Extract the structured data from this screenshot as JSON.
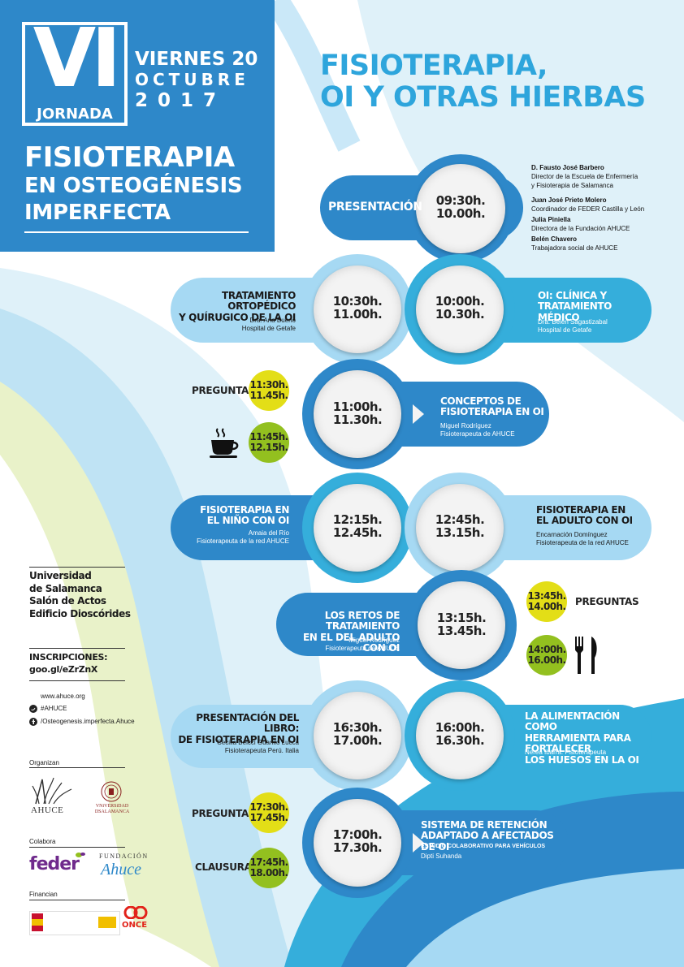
{
  "header": {
    "edition": "VI",
    "jornada": "JORNADA",
    "date_line1": "VIERNES 20",
    "date_line2": "OCTUBRE",
    "date_line3": "2 0 1 7",
    "title_line1": "FISIOTERAPIA",
    "title_line2": "EN OSTEOGÉNESIS",
    "title_line3": "IMPERFECTA"
  },
  "main_title": {
    "line1": "FISIOTERAPIA,",
    "line2": "OI Y OTRAS HIERBAS"
  },
  "colors": {
    "dark_blue": "#2e88c9",
    "mid_blue": "#35aedb",
    "light_blue": "#a6d9f3",
    "yellow": "#e3de17",
    "green": "#93c01f"
  },
  "sessions": {
    "presentacion": {
      "title": "PRESENTACIÓN",
      "start": "09:30h.",
      "end": "10.00h."
    },
    "clinica": {
      "title1": "OI: CLÍNICA Y",
      "title2": "TRATAMIENTO MÉDICO",
      "speaker": "Dra. Belén Sagastizabal",
      "affil": "Hospital de Getafe",
      "start": "10:00h.",
      "end": "10.30h."
    },
    "ortopedico": {
      "title1": "TRATAMIENTO ORTOPÉDICO",
      "title2": "Y QUÍRUGICO DE LA OI",
      "speaker": "Dra. Ana Bueno",
      "affil": "Hospital de Getafe",
      "start": "10:30h.",
      "end": "11.00h."
    },
    "conceptos": {
      "title1": "CONCEPTOS DE",
      "title2": "FISIOTERAPIA EN OI",
      "speaker": "Miguel Rodríguez",
      "affil": "Fisioterapeuta de AHUCE",
      "start": "11:00h.",
      "end": "11.30h."
    },
    "nino": {
      "title1": "FISIOTERAPIA EN",
      "title2": "EL NIÑO CON OI",
      "speaker": "Amaia del Río",
      "affil": "Fisioterapeuta de la red AHUCE",
      "start": "12:15h.",
      "end": "12.45h."
    },
    "adulto": {
      "title1": "FISIOTERAPIA EN",
      "title2": "EL ADULTO CON OI",
      "speaker": "Encarnación Domínguez",
      "affil": "Fisioterapeuta de la red AHUCE",
      "start": "12:45h.",
      "end": "13.15h."
    },
    "retos": {
      "title1": "LOS RETOS DE TRATAMIENTO",
      "title2": "EN EL DEL ADULTO CON OI",
      "speaker": "Miguel Rodríguez",
      "affil": "Fisioterapeuta de AHUCE",
      "start": "13:15h.",
      "end": "13.45h."
    },
    "alimentacion": {
      "title1": "LA ALIMENTACIÓN COMO",
      "title2": "HERRAMIENTA PARA FORTALECER",
      "title3": "LOS HUESOS EN LA  OI",
      "speaker": "Nerea Ibarra. Fisioterapeuta",
      "start": "16:00h.",
      "end": "16.30h."
    },
    "libro": {
      "title1": "PRESENTACIÓN DEL LIBRO:",
      "title2": "DE FISIOTERAPIA EN OI",
      "speaker": "Cecilia Belcci Guanilo Lucca",
      "affil": "Fisioterapeuta Perú. Italia",
      "start": "16:30h.",
      "end": "17.00h."
    },
    "sistema": {
      "title1": "SISTEMA DE RETENCIÓN",
      "title2": "ADAPTADO A AFECTADOS DE OI",
      "subtitle": "ESTUDIO COLABORATIVO PARA VEHÍCULOS",
      "speaker": "Dipti Suhanda",
      "start": "17:00h.",
      "end": "17.30h."
    }
  },
  "breaks": {
    "preguntas1": {
      "label": "PREGUNTAS",
      "start": "11:30h.",
      "end": "11.45h."
    },
    "cafe": {
      "icon": "coffee-cup-icon",
      "start": "11:45h.",
      "end": "12.15h."
    },
    "preguntas2": {
      "label": "PREGUNTAS",
      "start": "13:45h.",
      "end": "14.00h."
    },
    "comida": {
      "icon": "fork-knife-icon",
      "start": "14:00h.",
      "end": "16.00h."
    },
    "preguntas3": {
      "label": "PREGUNTAS",
      "start": "17:30h.",
      "end": "17.45h."
    },
    "clausura": {
      "label": "CLAUSURA",
      "start": "17:45h.",
      "end": "18.00h."
    }
  },
  "speakers_presentacion": [
    {
      "name": "D. Fausto José Barbero",
      "role1": "Director de la Escuela de Enfermería",
      "role2": "y Fisioterapia de Salamanca"
    },
    {
      "name": "Juan José Prieto Molero",
      "role1": "Coordinador de FEDER Castilla y León",
      "role2": ""
    },
    {
      "name": "Julia Piniella",
      "role1": "Directora de la Fundación AHUCE",
      "role2": ""
    },
    {
      "name": "Belén Chavero",
      "role1": "Trabajadora social de AHUCE",
      "role2": ""
    }
  ],
  "venue": {
    "line1": "Universidad",
    "line2": "de Salamanca",
    "line3": "Salón de Actos",
    "line4": "Edificio Dioscórides"
  },
  "inscripciones": {
    "label": "INSCRIPCIONES:",
    "url": "goo.gl/eZrZnX"
  },
  "contact": {
    "web": "www.ahuce.org",
    "twitter": "#AHUCE",
    "facebook": "/Osteogenesis.imperfecta.Ahuce"
  },
  "sponsors": {
    "organizan_label": "Organizan",
    "ahuce": "AHUCE",
    "usal": "VNiVERSiDAD DSALAMANCA",
    "colabora_label": "Colabora",
    "feder": "feder",
    "fundacion_label": "FUNDACIÓN",
    "fundacion_name": "Ahuce",
    "financian_label": "Financian",
    "once": "ONCE"
  }
}
